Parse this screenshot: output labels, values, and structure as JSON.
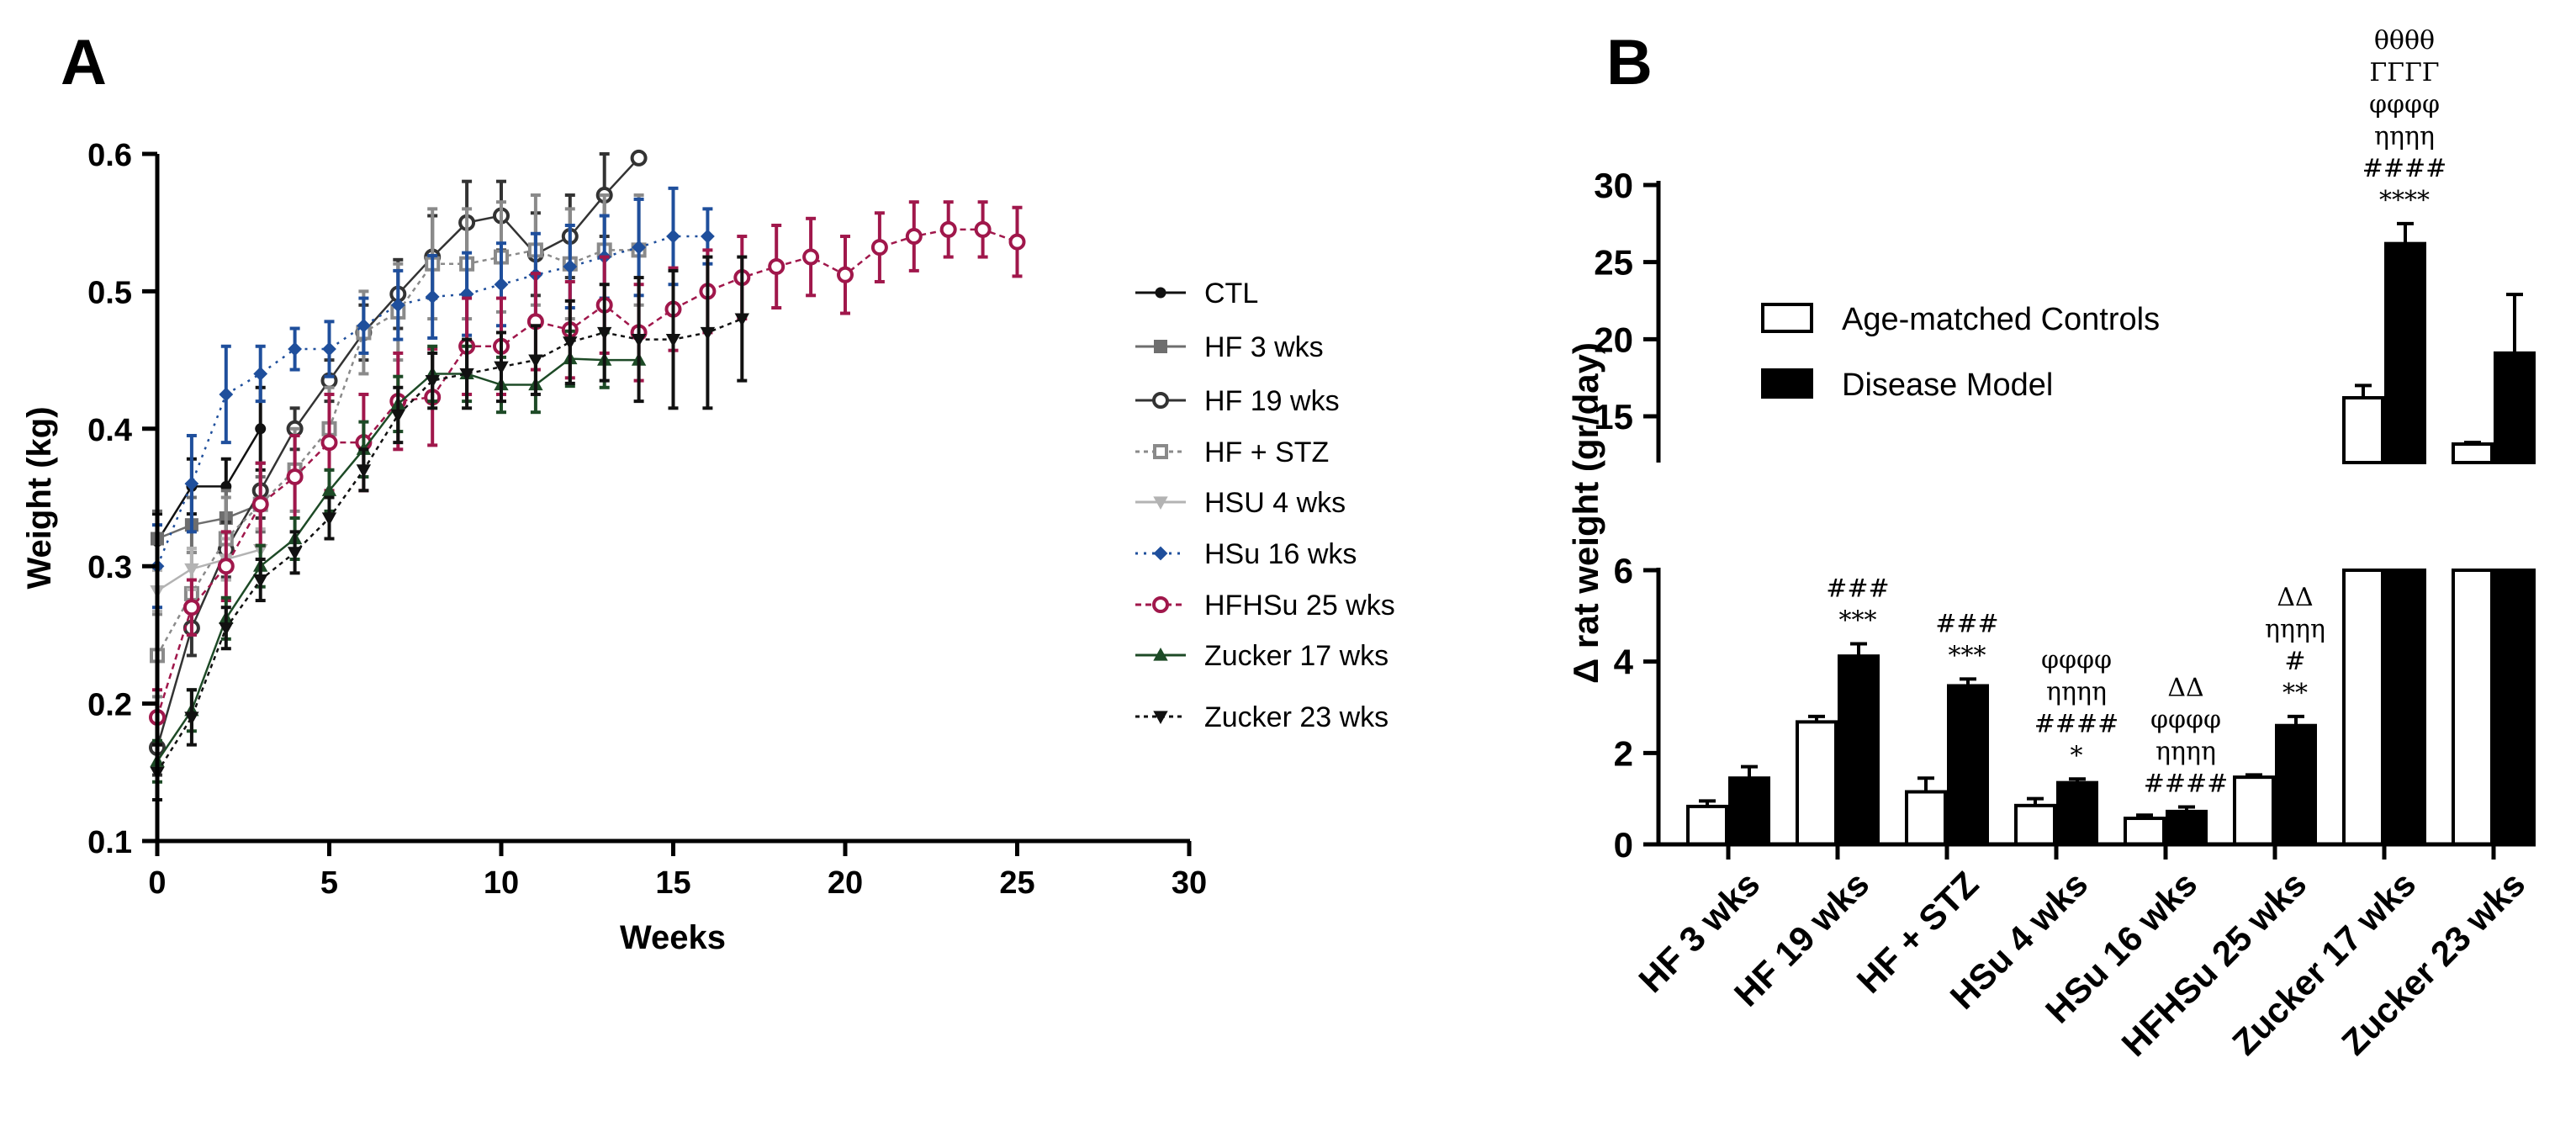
{
  "panel_a_letter": "A",
  "panel_b_letter": "B",
  "colors": {
    "CTL": "#111111",
    "HF3": "#6e6e6e",
    "HF19": "#333333",
    "HFSTZ": "#8a8a8a",
    "HSU4": "#b3b3b3",
    "HSu16": "#1f4f9c",
    "HFHSu": "#a0174b",
    "Zucker17": "#1d4a26",
    "Zucker23": "#111111"
  },
  "chart_data": [
    {
      "type": "line",
      "title": "",
      "xlabel": "Weeks",
      "ylabel": "Weight (kg)",
      "xlim": [
        0,
        30
      ],
      "ylim": [
        0.1,
        0.6
      ],
      "xticks": [
        "0",
        "5",
        "10",
        "15",
        "20",
        "25",
        "30"
      ],
      "yticks": [
        "0.1",
        "0.2",
        "0.3",
        "0.4",
        "0.5",
        "0.6"
      ],
      "legend_position": "right",
      "series": [
        {
          "key": "CTL",
          "name": "CTL",
          "marker": "dot",
          "dash": "",
          "open": false,
          "x": [
            0,
            1,
            2,
            3
          ],
          "y": [
            0.318,
            0.358,
            0.358,
            0.4
          ],
          "err": [
            0.02,
            0.02,
            0.02,
            0.03
          ]
        },
        {
          "key": "HF3",
          "name": "HF 3 wks",
          "marker": "square",
          "dash": "",
          "open": false,
          "x": [
            0,
            1,
            2,
            3
          ],
          "y": [
            0.32,
            0.33,
            0.335,
            0.345
          ],
          "err": [
            0.02,
            0.02,
            0.02,
            0.02
          ]
        },
        {
          "key": "HF19",
          "name": "HF 19 wks",
          "marker": "circle",
          "dash": "",
          "open": true,
          "x": [
            0,
            1,
            2,
            3,
            4,
            5,
            6,
            7,
            8,
            9,
            10,
            11,
            12,
            13,
            14
          ],
          "y": [
            0.168,
            0.255,
            0.312,
            0.355,
            0.4,
            0.435,
            0.47,
            0.498,
            0.525,
            0.55,
            0.555,
            0.527,
            0.54,
            0.57,
            0.597
          ],
          "err": [
            0.02,
            0.02,
            0.02,
            0.02,
            0.015,
            0.015,
            0.02,
            0.025,
            0.03,
            0.03,
            0.025,
            0.03,
            0.03,
            0.03,
            0.0
          ]
        },
        {
          "key": "HFSTZ",
          "name": "HF + STZ",
          "marker": "square",
          "dash": "5,5",
          "open": true,
          "x": [
            0,
            1,
            2,
            3,
            4,
            5,
            6,
            7,
            8,
            9,
            10,
            11,
            12,
            13,
            14
          ],
          "y": [
            0.235,
            0.28,
            0.32,
            0.345,
            0.37,
            0.4,
            0.47,
            0.485,
            0.52,
            0.52,
            0.525,
            0.53,
            0.52,
            0.53,
            0.53
          ],
          "err": [
            0.03,
            0.03,
            0.03,
            0.03,
            0.03,
            0.03,
            0.03,
            0.035,
            0.04,
            0.04,
            0.04,
            0.04,
            0.04,
            0.04,
            0.04
          ]
        },
        {
          "key": "HSU4",
          "name": "HSU 4 wks",
          "marker": "tri-down",
          "dash": "",
          "open": false,
          "x": [
            0,
            1,
            2,
            3
          ],
          "y": [
            0.282,
            0.298,
            0.305,
            0.312
          ],
          "err": [
            0.015,
            0.015,
            0.015,
            0.015
          ]
        },
        {
          "key": "HSu16",
          "name": "HSu 16 wks",
          "marker": "diamond",
          "dash": "3,7",
          "open": false,
          "x": [
            0,
            1,
            2,
            3,
            4,
            5,
            6,
            7,
            8,
            9,
            10,
            11,
            12,
            13,
            14,
            15,
            16
          ],
          "y": [
            0.3,
            0.36,
            0.425,
            0.44,
            0.458,
            0.458,
            0.475,
            0.49,
            0.496,
            0.498,
            0.505,
            0.512,
            0.518,
            0.525,
            0.532,
            0.54,
            0.54
          ],
          "err": [
            0.03,
            0.035,
            0.035,
            0.02,
            0.015,
            0.02,
            0.02,
            0.025,
            0.03,
            0.03,
            0.03,
            0.03,
            0.03,
            0.03,
            0.035,
            0.035,
            0.02
          ]
        },
        {
          "key": "HFHSu",
          "name": "HFHSu 25 wks",
          "marker": "circle",
          "dash": "7,5",
          "open": true,
          "x": [
            0,
            1,
            2,
            3,
            4,
            5,
            6,
            7,
            8,
            9,
            10,
            11,
            12,
            13,
            14,
            15,
            16,
            17,
            18,
            19,
            20,
            21,
            22,
            23,
            24,
            25
          ],
          "y": [
            0.19,
            0.27,
            0.3,
            0.345,
            0.365,
            0.39,
            0.39,
            0.42,
            0.423,
            0.46,
            0.46,
            0.478,
            0.472,
            0.49,
            0.47,
            0.487,
            0.5,
            0.51,
            0.518,
            0.525,
            0.512,
            0.532,
            0.54,
            0.545,
            0.545,
            0.536
          ],
          "err": [
            0.02,
            0.02,
            0.025,
            0.03,
            0.03,
            0.035,
            0.035,
            0.035,
            0.035,
            0.035,
            0.035,
            0.035,
            0.035,
            0.035,
            0.035,
            0.03,
            0.03,
            0.03,
            0.03,
            0.028,
            0.028,
            0.025,
            0.025,
            0.02,
            0.02,
            0.025
          ]
        },
        {
          "key": "Zucker17",
          "name": "Zucker 17 wks",
          "marker": "tri-up",
          "dash": "",
          "open": false,
          "x": [
            0,
            1,
            2,
            3,
            4,
            5,
            6,
            7,
            8,
            9,
            10,
            11,
            12,
            13,
            14
          ],
          "y": [
            0.158,
            0.195,
            0.262,
            0.3,
            0.32,
            0.355,
            0.385,
            0.418,
            0.44,
            0.44,
            0.432,
            0.432,
            0.451,
            0.45,
            0.45
          ],
          "err": [
            0.015,
            0.015,
            0.015,
            0.015,
            0.015,
            0.015,
            0.02,
            0.02,
            0.02,
            0.02,
            0.02,
            0.02,
            0.02,
            0.02,
            0.0
          ]
        },
        {
          "key": "Zucker23",
          "name": "Zucker 23 wks",
          "marker": "tri-down",
          "dash": "5,5",
          "open": false,
          "x": [
            0,
            1,
            2,
            3,
            4,
            5,
            6,
            7,
            8,
            9,
            10,
            11,
            12,
            13,
            14,
            15,
            16,
            17
          ],
          "y": [
            0.15,
            0.19,
            0.255,
            0.29,
            0.31,
            0.335,
            0.37,
            0.41,
            0.435,
            0.44,
            0.445,
            0.45,
            0.463,
            0.47,
            0.465,
            0.465,
            0.47,
            0.48
          ],
          "err": [
            0.02,
            0.02,
            0.015,
            0.015,
            0.015,
            0.015,
            0.015,
            0.02,
            0.02,
            0.025,
            0.025,
            0.025,
            0.03,
            0.035,
            0.045,
            0.05,
            0.055,
            0.045
          ]
        }
      ]
    },
    {
      "type": "bar",
      "title": "",
      "xlabel": "",
      "ylabel": "Δ rat weight (gr/day)",
      "axis_break": true,
      "ylim_lower": [
        0,
        6
      ],
      "ylim_upper": [
        12,
        30
      ],
      "yticks_lower": [
        "0",
        "2",
        "4",
        "6"
      ],
      "yticks_upper": [
        "15",
        "20",
        "25",
        "30"
      ],
      "legend_position": "top-center",
      "categories": [
        "HF 3 wks",
        "HF 19 wks",
        "HF + STZ",
        "HSu 4 wks",
        "HSu 16 wks",
        "HFHSu 25 wks",
        "Zucker 17 wks",
        "Zucker 23 wks"
      ],
      "series": [
        {
          "name": "Age-matched Controls",
          "fill": "white",
          "values": [
            0.83,
            2.68,
            1.15,
            0.85,
            0.57,
            1.47,
            16.2,
            13.2
          ],
          "err": [
            0.12,
            0.12,
            0.3,
            0.15,
            0.07,
            0.05,
            0.8,
            0.1
          ]
        },
        {
          "name": "Disease Model",
          "fill": "black",
          "values": [
            1.45,
            4.12,
            3.47,
            1.35,
            0.72,
            2.6,
            26.2,
            19.1
          ],
          "err": [
            0.25,
            0.27,
            0.15,
            0.08,
            0.1,
            0.2,
            1.3,
            3.8
          ]
        }
      ],
      "annotations": [
        [],
        [
          "###",
          "***"
        ],
        [
          "###",
          "***"
        ],
        [
          "φφφφ",
          "ηηηη",
          "####",
          "*"
        ],
        [
          "ΔΔ",
          "φφφφ",
          "ηηηη",
          "####"
        ],
        [
          "ΔΔ",
          "ηηηη",
          "#",
          "**"
        ],
        [
          "θθθθ",
          "ΓΓΓΓ",
          "φφφφ",
          "ηηηη",
          "####",
          "****"
        ],
        []
      ]
    }
  ]
}
